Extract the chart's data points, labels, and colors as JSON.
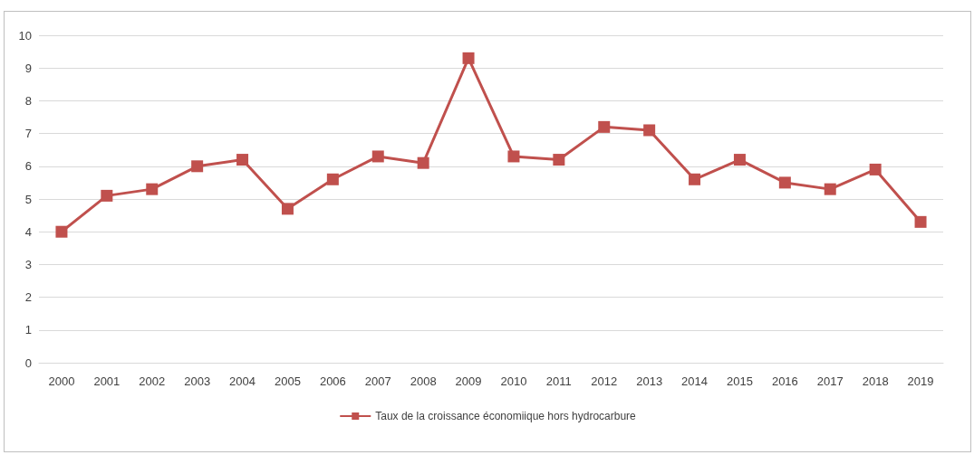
{
  "chart_data": {
    "type": "line",
    "categories": [
      "2000",
      "2001",
      "2002",
      "2003",
      "2004",
      "2005",
      "2006",
      "2007",
      "2008",
      "2009",
      "2010",
      "2011",
      "2012",
      "2013",
      "2014",
      "2015",
      "2016",
      "2017",
      "2018",
      "2019"
    ],
    "series": [
      {
        "name": "Taux de la croissance économiique hors hydrocarbure",
        "color": "#c0504d",
        "values": [
          4.0,
          5.1,
          5.3,
          6.0,
          6.2,
          4.7,
          5.6,
          6.3,
          6.1,
          9.3,
          6.3,
          6.2,
          7.2,
          7.1,
          5.6,
          6.2,
          5.5,
          5.3,
          5.9,
          4.3
        ]
      }
    ],
    "ylim": [
      0,
      10
    ],
    "yticks": [
      0,
      1,
      2,
      3,
      4,
      5,
      6,
      7,
      8,
      9,
      10
    ],
    "grid": "y",
    "legend": "bottom",
    "marker": "square",
    "line_style": "solid"
  }
}
